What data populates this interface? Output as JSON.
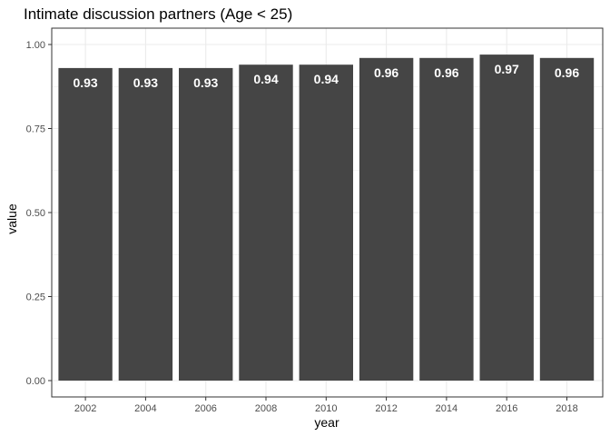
{
  "chart_data": {
    "type": "bar",
    "title": "Intimate discussion partners (Age < 25)",
    "xlabel": "year",
    "ylabel": "value",
    "categories": [
      "2002",
      "2004",
      "2006",
      "2008",
      "2010",
      "2012",
      "2014",
      "2016",
      "2018"
    ],
    "values": [
      0.93,
      0.93,
      0.93,
      0.94,
      0.94,
      0.96,
      0.96,
      0.97,
      0.96
    ],
    "data_labels": [
      "0.93",
      "0.93",
      "0.93",
      "0.94",
      "0.94",
      "0.96",
      "0.96",
      "0.97",
      "0.96"
    ],
    "ylim": [
      0,
      1.0
    ],
    "yticks": [
      0.0,
      0.25,
      0.5,
      0.75,
      1.0
    ],
    "ytick_labels": [
      "0.00",
      "0.25",
      "0.50",
      "0.75",
      "1.00"
    ],
    "grid": true,
    "legend": "none",
    "bar_color": "#454545",
    "label_color": "#ffffff",
    "grid_color": "#ebebeb",
    "panel_border_color": "#333333"
  }
}
